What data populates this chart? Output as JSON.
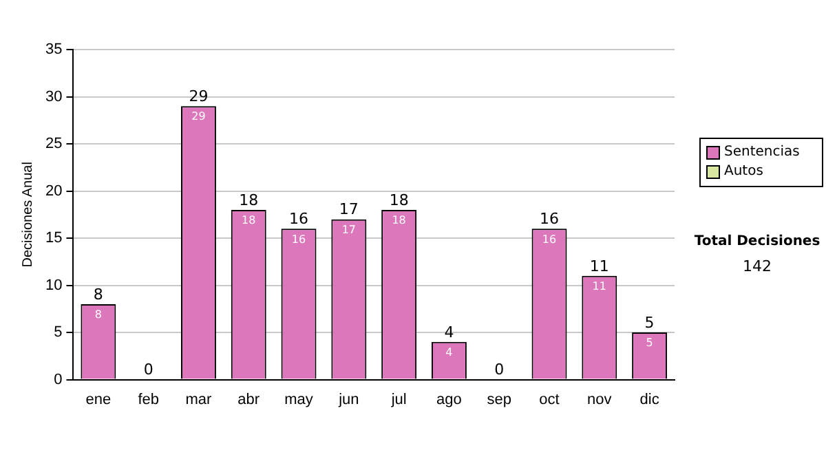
{
  "chart_data": {
    "type": "bar",
    "ylabel": "Decisiones Anual",
    "categories": [
      "ene",
      "feb",
      "mar",
      "abr",
      "may",
      "jun",
      "jul",
      "ago",
      "sep",
      "oct",
      "nov",
      "dic"
    ],
    "series": [
      {
        "name": "Sentencias",
        "color": "#dd77bb",
        "values": [
          8,
          0,
          29,
          18,
          16,
          17,
          18,
          4,
          0,
          16,
          11,
          5
        ],
        "value_labels": [
          "8",
          null,
          "29",
          "18",
          "16",
          "17",
          "18",
          "4",
          null,
          "16",
          "11",
          "5"
        ]
      },
      {
        "name": "Autos",
        "color": "#d8e8a0",
        "values": [
          0,
          0,
          0,
          0,
          0,
          0,
          0,
          0,
          0,
          0,
          0,
          0
        ]
      }
    ],
    "stacked": true,
    "totals": [
      "8",
      "0",
      "29",
      "18",
      "16",
      "17",
      "18",
      "4",
      "0",
      "16",
      "11",
      "5"
    ],
    "ylim": [
      0,
      35
    ],
    "yticks": [
      0,
      5,
      10,
      15,
      20,
      25,
      30,
      35
    ],
    "grid": "y",
    "legend": "right",
    "annotations": [
      "Total Decisiones",
      "142"
    ]
  }
}
